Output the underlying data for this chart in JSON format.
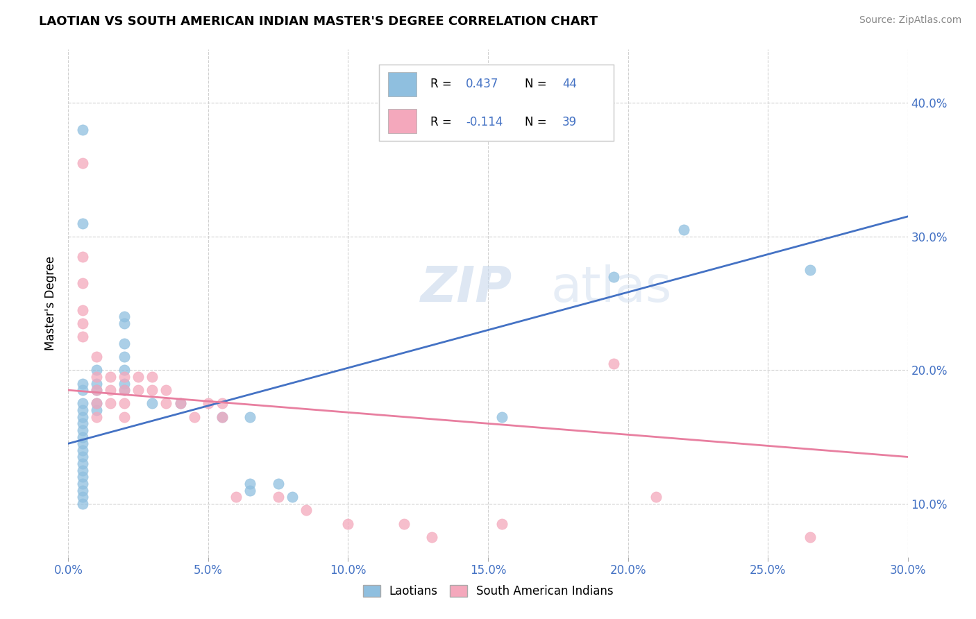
{
  "title": "LAOTIAN VS SOUTH AMERICAN INDIAN MASTER'S DEGREE CORRELATION CHART",
  "source": "Source: ZipAtlas.com",
  "xmin": 0.0,
  "xmax": 0.3,
  "ymin": 0.06,
  "ymax": 0.44,
  "ylabel": "Master's Degree",
  "watermark": "ZIPatlas",
  "blue_color": "#8fbfdf",
  "pink_color": "#f4a8bc",
  "blue_line_color": "#4472c4",
  "pink_line_color": "#e87fa0",
  "laotian_scatter": [
    [
      0.005,
      0.38
    ],
    [
      0.005,
      0.31
    ],
    [
      0.02,
      0.24
    ],
    [
      0.02,
      0.235
    ],
    [
      0.02,
      0.22
    ],
    [
      0.02,
      0.21
    ],
    [
      0.02,
      0.2
    ],
    [
      0.02,
      0.19
    ],
    [
      0.02,
      0.185
    ],
    [
      0.01,
      0.2
    ],
    [
      0.01,
      0.19
    ],
    [
      0.01,
      0.185
    ],
    [
      0.01,
      0.175
    ],
    [
      0.01,
      0.17
    ],
    [
      0.005,
      0.19
    ],
    [
      0.005,
      0.185
    ],
    [
      0.005,
      0.175
    ],
    [
      0.005,
      0.17
    ],
    [
      0.005,
      0.165
    ],
    [
      0.005,
      0.16
    ],
    [
      0.005,
      0.155
    ],
    [
      0.005,
      0.15
    ],
    [
      0.005,
      0.145
    ],
    [
      0.005,
      0.14
    ],
    [
      0.005,
      0.135
    ],
    [
      0.005,
      0.13
    ],
    [
      0.005,
      0.125
    ],
    [
      0.005,
      0.12
    ],
    [
      0.005,
      0.115
    ],
    [
      0.005,
      0.11
    ],
    [
      0.005,
      0.105
    ],
    [
      0.005,
      0.1
    ],
    [
      0.03,
      0.175
    ],
    [
      0.04,
      0.175
    ],
    [
      0.055,
      0.165
    ],
    [
      0.065,
      0.165
    ],
    [
      0.065,
      0.115
    ],
    [
      0.065,
      0.11
    ],
    [
      0.075,
      0.115
    ],
    [
      0.08,
      0.105
    ],
    [
      0.155,
      0.165
    ],
    [
      0.195,
      0.27
    ],
    [
      0.22,
      0.305
    ],
    [
      0.265,
      0.275
    ]
  ],
  "sa_scatter": [
    [
      0.005,
      0.355
    ],
    [
      0.005,
      0.285
    ],
    [
      0.005,
      0.265
    ],
    [
      0.005,
      0.245
    ],
    [
      0.005,
      0.235
    ],
    [
      0.005,
      0.225
    ],
    [
      0.01,
      0.21
    ],
    [
      0.01,
      0.195
    ],
    [
      0.01,
      0.185
    ],
    [
      0.01,
      0.175
    ],
    [
      0.01,
      0.165
    ],
    [
      0.015,
      0.195
    ],
    [
      0.015,
      0.185
    ],
    [
      0.015,
      0.175
    ],
    [
      0.02,
      0.195
    ],
    [
      0.02,
      0.185
    ],
    [
      0.02,
      0.175
    ],
    [
      0.02,
      0.165
    ],
    [
      0.025,
      0.195
    ],
    [
      0.025,
      0.185
    ],
    [
      0.03,
      0.195
    ],
    [
      0.03,
      0.185
    ],
    [
      0.035,
      0.185
    ],
    [
      0.035,
      0.175
    ],
    [
      0.04,
      0.175
    ],
    [
      0.045,
      0.165
    ],
    [
      0.05,
      0.175
    ],
    [
      0.055,
      0.175
    ],
    [
      0.055,
      0.165
    ],
    [
      0.06,
      0.105
    ],
    [
      0.075,
      0.105
    ],
    [
      0.085,
      0.095
    ],
    [
      0.1,
      0.085
    ],
    [
      0.12,
      0.085
    ],
    [
      0.13,
      0.075
    ],
    [
      0.155,
      0.085
    ],
    [
      0.195,
      0.205
    ],
    [
      0.21,
      0.105
    ],
    [
      0.265,
      0.075
    ]
  ],
  "blue_trendline_x": [
    0.0,
    0.3
  ],
  "blue_trendline_y": [
    0.145,
    0.315
  ],
  "pink_trendline_x": [
    0.0,
    0.3
  ],
  "pink_trendline_y": [
    0.185,
    0.135
  ]
}
